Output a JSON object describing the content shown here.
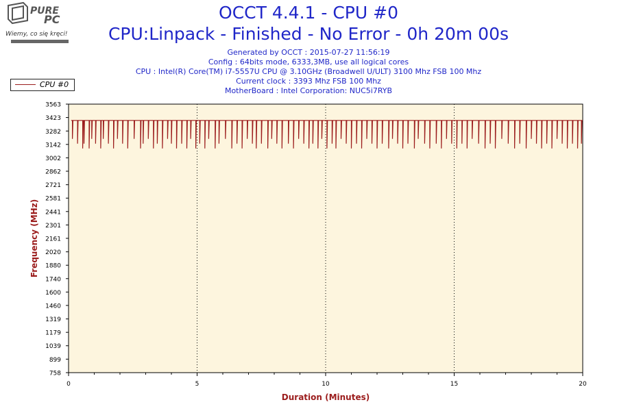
{
  "logo": {
    "brand": "PUREPC",
    "tagline": "Wiemy, co się kręci!"
  },
  "header": {
    "title": "OCCT 4.4.1 - CPU #0",
    "subtitle": "CPU:Linpack - Finished - No Error - 0h 20m 00s",
    "info_lines": [
      "Generated by OCCT : 2015-07-27 11:56:19",
      "Config : 64bits mode, 6333,3MB, use all logical cores",
      "CPU : Intel(R) Core(TM) i7-5557U CPU @ 3.10GHz (Broadwell U/ULT) 3100 Mhz FSB 100 Mhz",
      "Current clock : 3393 Mhz FSB 100 Mhz",
      "MotherBoard : Intel Corporation: NUC5i7RYB"
    ]
  },
  "colors": {
    "series": "#9b1c1c",
    "plot_bg": "#fdf5de",
    "axis_label": "#9b1c1c",
    "title": "#1f26c8"
  },
  "chart_data": {
    "type": "line",
    "xlabel": "Duration (Minutes)",
    "ylabel": "Frequency (MHz)",
    "xlim": [
      0,
      20
    ],
    "ylim": [
      758,
      3563
    ],
    "x_ticks": [
      0,
      5,
      10,
      15,
      20
    ],
    "y_ticks": [
      758,
      899,
      1039,
      1179,
      1319,
      1460,
      1600,
      1740,
      1880,
      2020,
      2161,
      2301,
      2441,
      2581,
      2721,
      2862,
      3002,
      3142,
      3282,
      3423,
      3563
    ],
    "grid": "vertical-dotted",
    "legend_position": "top-left",
    "series": [
      {
        "name": "CPU #0",
        "baseline": 3393,
        "start": {
          "x": 0.1,
          "y": 3393
        },
        "dips": [
          [
            0.15,
            3200
          ],
          [
            0.35,
            3150
          ],
          [
            0.55,
            3100
          ],
          [
            0.6,
            3150
          ],
          [
            0.8,
            3100
          ],
          [
            0.9,
            3200
          ],
          [
            1.05,
            3150
          ],
          [
            1.25,
            3100
          ],
          [
            1.35,
            3200
          ],
          [
            1.55,
            3150
          ],
          [
            1.75,
            3100
          ],
          [
            1.9,
            3200
          ],
          [
            2.1,
            3150
          ],
          [
            2.3,
            3100
          ],
          [
            2.55,
            3200
          ],
          [
            2.8,
            3100
          ],
          [
            2.9,
            3150
          ],
          [
            3.1,
            3200
          ],
          [
            3.3,
            3100
          ],
          [
            3.45,
            3150
          ],
          [
            3.65,
            3100
          ],
          [
            3.85,
            3200
          ],
          [
            4.0,
            3150
          ],
          [
            4.2,
            3100
          ],
          [
            4.4,
            3150
          ],
          [
            4.6,
            3100
          ],
          [
            4.75,
            3200
          ],
          [
            4.95,
            3100
          ],
          [
            5.1,
            3150
          ],
          [
            5.3,
            3100
          ],
          [
            5.45,
            3200
          ],
          [
            5.7,
            3100
          ],
          [
            5.85,
            3150
          ],
          [
            6.1,
            3200
          ],
          [
            6.35,
            3100
          ],
          [
            6.55,
            3150
          ],
          [
            6.75,
            3100
          ],
          [
            6.95,
            3200
          ],
          [
            7.15,
            3150
          ],
          [
            7.3,
            3100
          ],
          [
            7.5,
            3150
          ],
          [
            7.75,
            3100
          ],
          [
            7.9,
            3200
          ],
          [
            8.1,
            3150
          ],
          [
            8.3,
            3100
          ],
          [
            8.55,
            3150
          ],
          [
            8.75,
            3100
          ],
          [
            8.95,
            3200
          ],
          [
            9.15,
            3150
          ],
          [
            9.35,
            3100
          ],
          [
            9.5,
            3150
          ],
          [
            9.7,
            3100
          ],
          [
            9.85,
            3200
          ],
          [
            10.05,
            3100
          ],
          [
            10.25,
            3150
          ],
          [
            10.4,
            3100
          ],
          [
            10.6,
            3200
          ],
          [
            10.8,
            3150
          ],
          [
            11.0,
            3100
          ],
          [
            11.2,
            3150
          ],
          [
            11.4,
            3100
          ],
          [
            11.6,
            3200
          ],
          [
            11.8,
            3150
          ],
          [
            12.0,
            3100
          ],
          [
            12.2,
            3150
          ],
          [
            12.45,
            3100
          ],
          [
            12.6,
            3200
          ],
          [
            12.8,
            3150
          ],
          [
            13.0,
            3100
          ],
          [
            13.2,
            3150
          ],
          [
            13.45,
            3100
          ],
          [
            13.6,
            3200
          ],
          [
            13.85,
            3150
          ],
          [
            14.05,
            3100
          ],
          [
            14.3,
            3150
          ],
          [
            14.5,
            3100
          ],
          [
            14.7,
            3200
          ],
          [
            14.9,
            3150
          ],
          [
            15.1,
            3100
          ],
          [
            15.3,
            3150
          ],
          [
            15.5,
            3100
          ],
          [
            15.7,
            3200
          ],
          [
            15.95,
            3150
          ],
          [
            16.2,
            3100
          ],
          [
            16.4,
            3150
          ],
          [
            16.6,
            3100
          ],
          [
            16.85,
            3200
          ],
          [
            17.1,
            3150
          ],
          [
            17.35,
            3100
          ],
          [
            17.55,
            3150
          ],
          [
            17.8,
            3100
          ],
          [
            18.0,
            3200
          ],
          [
            18.2,
            3150
          ],
          [
            18.4,
            3100
          ],
          [
            18.6,
            3150
          ],
          [
            18.8,
            3100
          ],
          [
            19.0,
            3200
          ],
          [
            19.2,
            3150
          ],
          [
            19.4,
            3100
          ],
          [
            19.6,
            3150
          ],
          [
            19.8,
            3100
          ],
          [
            19.95,
            3150
          ]
        ]
      }
    ]
  }
}
